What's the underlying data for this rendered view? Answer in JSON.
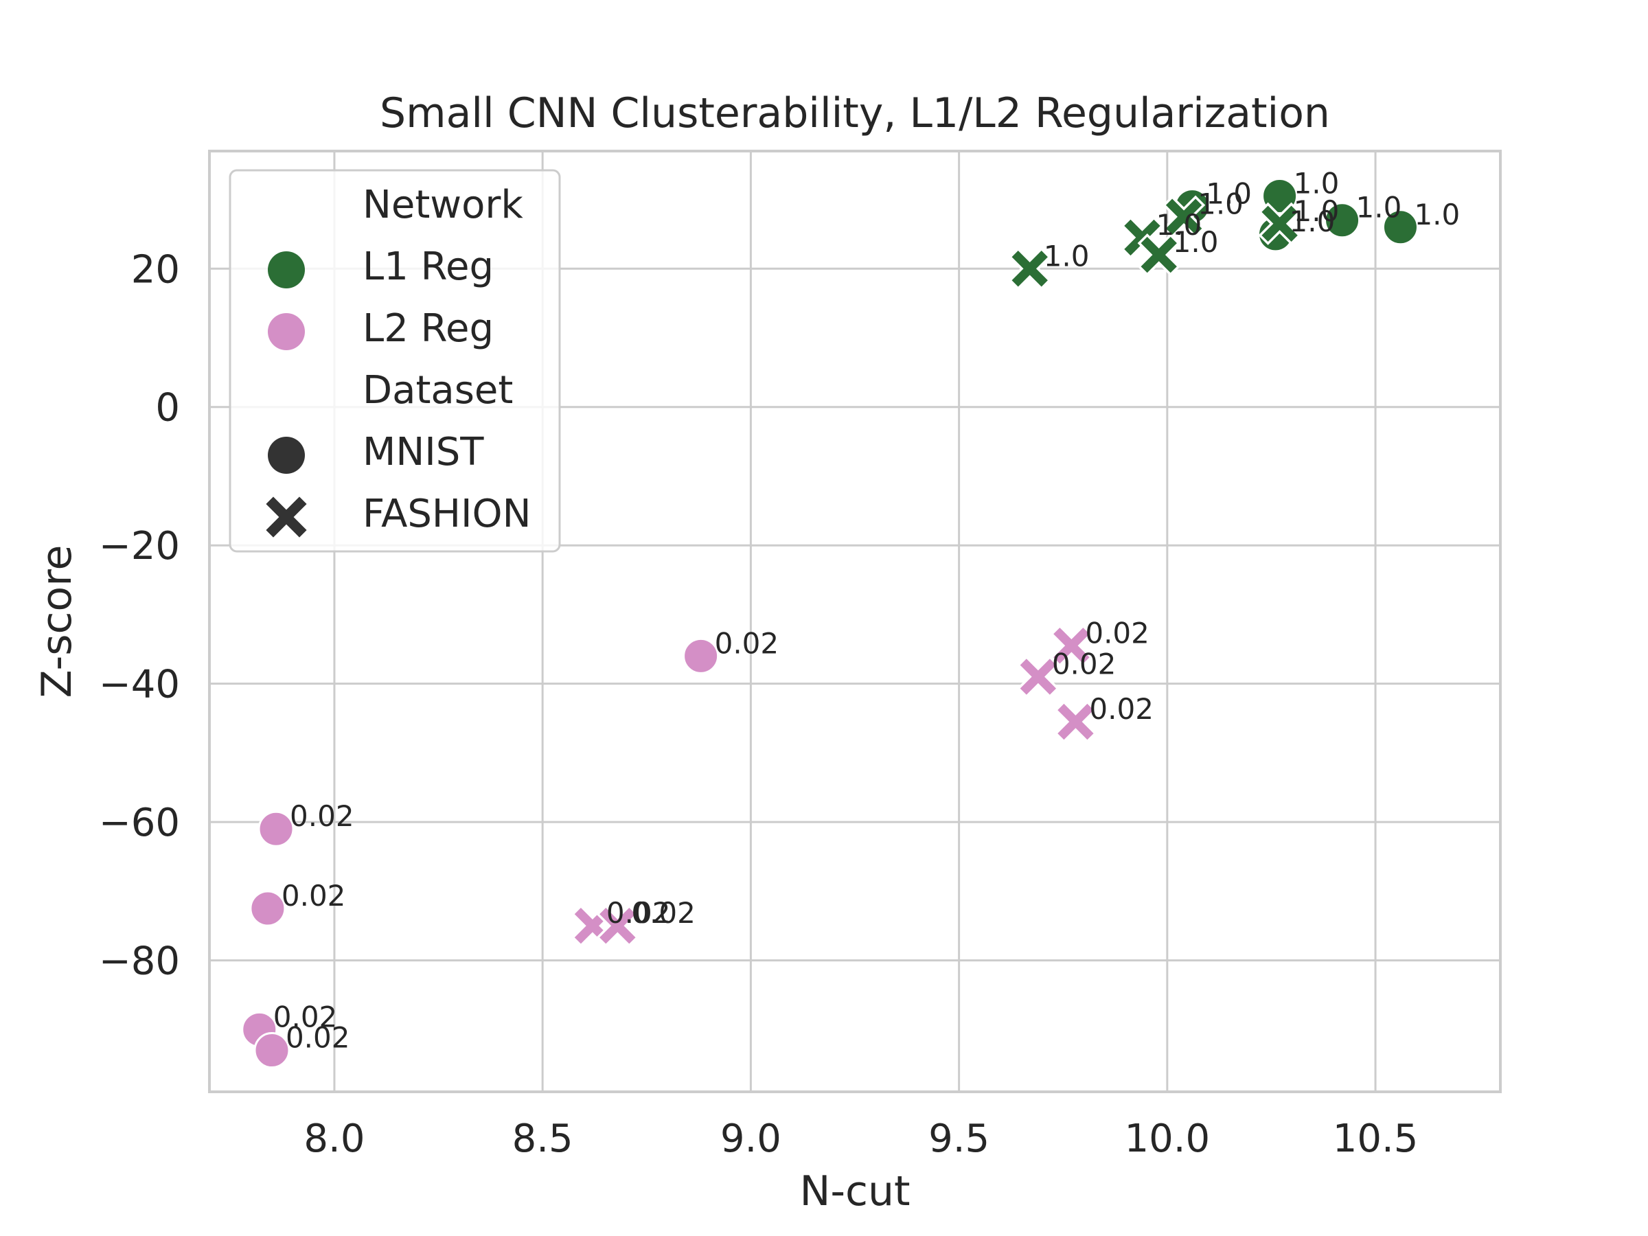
{
  "chart_data": {
    "type": "scatter",
    "title": "Small CNN Clusterability, L1/L2 Regularization",
    "xlabel": "N-cut",
    "ylabel": "Z-score",
    "xlim": [
      7.7,
      10.8
    ],
    "ylim": [
      -99,
      37
    ],
    "xticks": [
      8.0,
      8.5,
      9.0,
      9.5,
      10.0,
      10.5
    ],
    "xtick_labels": [
      "8.0",
      "8.5",
      "9.0",
      "9.5",
      "10.0",
      "10.5"
    ],
    "yticks": [
      20,
      0,
      -20,
      -40,
      -60,
      -80
    ],
    "ytick_labels": [
      "20",
      "0",
      "−20",
      "−40",
      "−60",
      "−80"
    ],
    "grid": true,
    "legend_position": "upper-left",
    "legend": {
      "hue_title": "Network",
      "style_title": "Dataset",
      "hue_entries": [
        {
          "label": "L1 Reg",
          "color": "#2b6e35"
        },
        {
          "label": "L2 Reg",
          "color": "#d48fc6"
        }
      ],
      "style_entries": [
        {
          "label": "MNIST",
          "marker": "circle"
        },
        {
          "label": "FASHION",
          "marker": "x"
        }
      ]
    },
    "series": [
      {
        "name": "L1 Reg",
        "color": "#2b6e35",
        "points": [
          {
            "x": 10.06,
            "y": 29.0,
            "marker": "circle",
            "label": "1.0"
          },
          {
            "x": 10.27,
            "y": 30.5,
            "marker": "circle",
            "label": "1.0"
          },
          {
            "x": 10.42,
            "y": 27.0,
            "marker": "circle",
            "label": "1.0"
          },
          {
            "x": 10.56,
            "y": 26.0,
            "marker": "circle",
            "label": "1.0"
          },
          {
            "x": 10.26,
            "y": 25.0,
            "marker": "circle",
            "label": "1.0"
          },
          {
            "x": 9.67,
            "y": 20.0,
            "marker": "x",
            "label": "1.0"
          },
          {
            "x": 9.94,
            "y": 24.5,
            "marker": "x",
            "label": "1.0"
          },
          {
            "x": 9.98,
            "y": 22.0,
            "marker": "x",
            "label": "1.0"
          },
          {
            "x": 10.04,
            "y": 27.5,
            "marker": "x",
            "label": "1.0"
          },
          {
            "x": 10.27,
            "y": 26.5,
            "marker": "x",
            "label": "1.0"
          }
        ]
      },
      {
        "name": "L2 Reg",
        "color": "#d48fc6",
        "points": [
          {
            "x": 8.88,
            "y": -36.0,
            "marker": "circle",
            "label": "0.02"
          },
          {
            "x": 7.86,
            "y": -61.0,
            "marker": "circle",
            "label": "0.02"
          },
          {
            "x": 7.84,
            "y": -72.5,
            "marker": "circle",
            "label": "0.02"
          },
          {
            "x": 7.82,
            "y": -90.0,
            "marker": "circle",
            "label": "0.02"
          },
          {
            "x": 7.85,
            "y": -93.0,
            "marker": "circle",
            "label": "0.02"
          },
          {
            "x": 9.77,
            "y": -34.5,
            "marker": "x",
            "label": "0.02"
          },
          {
            "x": 9.69,
            "y": -39.0,
            "marker": "x",
            "label": "0.02"
          },
          {
            "x": 9.78,
            "y": -45.5,
            "marker": "x",
            "label": "0.02"
          },
          {
            "x": 8.62,
            "y": -75.0,
            "marker": "x",
            "label": "0.02"
          },
          {
            "x": 8.68,
            "y": -75.0,
            "marker": "x",
            "label": "0.02"
          }
        ]
      }
    ]
  }
}
